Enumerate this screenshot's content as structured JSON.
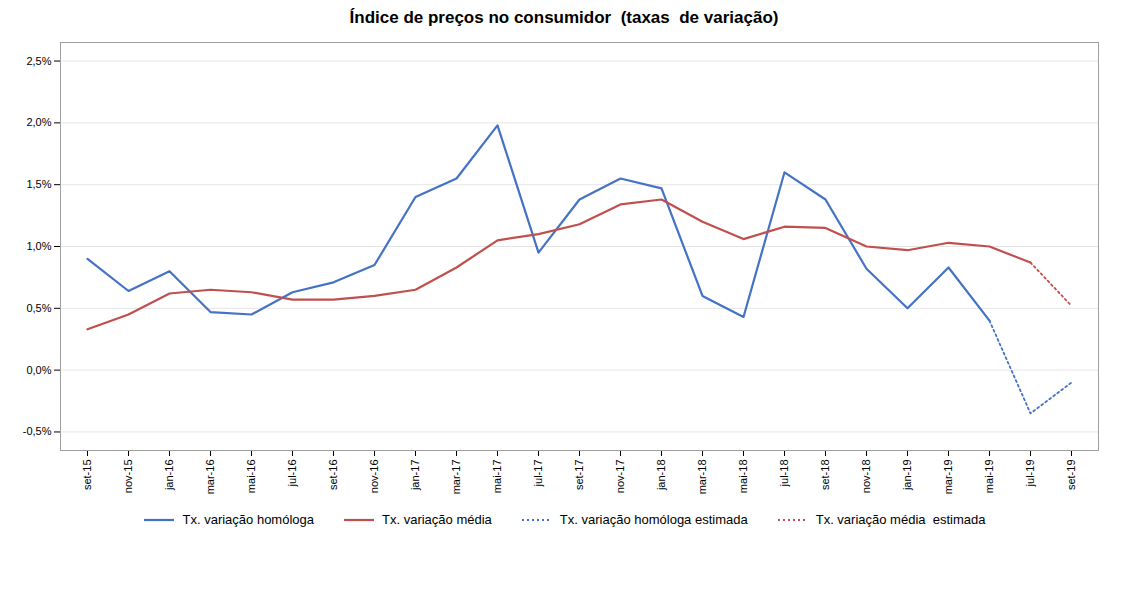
{
  "chart_data": {
    "type": "line",
    "title": "Índice de preços no consumidor  (taxas  de variação)",
    "categories": [
      "set-15",
      "nov-15",
      "jan-16",
      "mar-16",
      "mai-16",
      "jul-16",
      "set-16",
      "nov-16",
      "jan-17",
      "mar-17",
      "mai-17",
      "jul-17",
      "set-17",
      "nov-17",
      "jan-18",
      "mar-18",
      "mai-18",
      "jul-18",
      "set-18",
      "nov-18",
      "jan-19",
      "mar-19",
      "mai-19",
      "jul-19",
      "set-19"
    ],
    "series": [
      {
        "name": "Tx. variação homóloga",
        "color": "#4472C4",
        "line_style": "solid",
        "values": [
          0.9,
          0.64,
          0.8,
          0.47,
          0.45,
          0.63,
          0.71,
          0.85,
          1.4,
          1.55,
          1.98,
          0.95,
          1.38,
          1.55,
          1.47,
          0.6,
          0.43,
          1.6,
          1.38,
          0.82,
          0.5,
          0.83,
          0.4,
          null,
          null
        ]
      },
      {
        "name": "Tx. variação média",
        "color": "#C0504D",
        "line_style": "solid",
        "values": [
          0.33,
          0.45,
          0.62,
          0.65,
          0.63,
          0.57,
          0.57,
          0.6,
          0.65,
          0.83,
          1.05,
          1.1,
          1.18,
          1.34,
          1.38,
          1.2,
          1.06,
          1.16,
          1.15,
          1.0,
          0.97,
          1.03,
          1.0,
          0.87,
          null
        ]
      },
      {
        "name": "Tx. variação homóloga estimada",
        "color": "#4472C4",
        "line_style": "dotted",
        "values": [
          null,
          null,
          null,
          null,
          null,
          null,
          null,
          null,
          null,
          null,
          null,
          null,
          null,
          null,
          null,
          null,
          null,
          null,
          null,
          null,
          null,
          null,
          0.4,
          -0.35,
          -0.1
        ]
      },
      {
        "name": "Tx. variação média  estimada",
        "color": "#C0504D",
        "line_style": "dotted",
        "values": [
          null,
          null,
          null,
          null,
          null,
          null,
          null,
          null,
          null,
          null,
          null,
          null,
          null,
          null,
          null,
          null,
          null,
          null,
          null,
          null,
          null,
          null,
          null,
          0.87,
          0.52
        ]
      }
    ],
    "ylim": [
      -0.65,
      2.65
    ],
    "yticks": [
      {
        "value": -0.5,
        "label": "-0,5%"
      },
      {
        "value": 0.0,
        "label": "0,0%"
      },
      {
        "value": 0.5,
        "label": "0,5%"
      },
      {
        "value": 1.0,
        "label": "1,0%"
      },
      {
        "value": 1.5,
        "label": "1,5%"
      },
      {
        "value": 2.0,
        "label": "2,0%"
      },
      {
        "value": 2.5,
        "label": "2,5%"
      }
    ],
    "grid": true,
    "legend": "bottom"
  }
}
